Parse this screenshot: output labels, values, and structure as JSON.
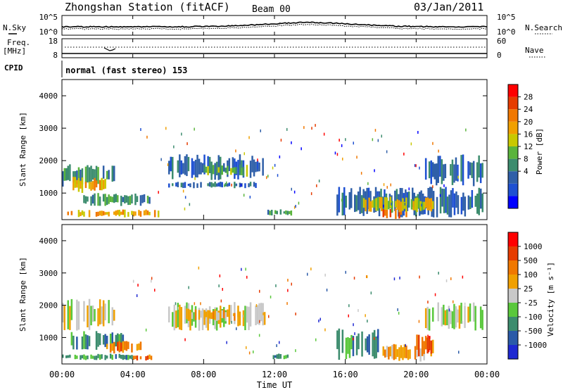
{
  "header": {
    "station": "Zhongshan Station (fitACF)",
    "beam": "Beam 00",
    "date": "03/Jan/2011"
  },
  "left_labels": {
    "nsky": "N.Sky",
    "freq": "Freq.",
    "mhz": "[MHz]",
    "cpid": "CPID"
  },
  "right_labels": {
    "nsearch": "N.Search",
    "nave": "Nave"
  },
  "cpid_text": "normal (fast stereo) 153",
  "x_axis": {
    "label": "Time UT",
    "ticks": [
      "00:00",
      "04:00",
      "08:00",
      "12:00",
      "16:00",
      "20:00",
      "00:00"
    ]
  },
  "noise_panel": {
    "left_ticks": [
      "10^5",
      "10^0"
    ],
    "right_ticks": [
      "10^5",
      "10^0"
    ]
  },
  "freq_panel": {
    "left_ticks": [
      "18",
      "8"
    ],
    "right_ticks": [
      "60",
      "0"
    ]
  },
  "power_panel": {
    "ylabel": "Slant Range [km]",
    "yticks": [
      "4000",
      "3000",
      "2000",
      "1000"
    ],
    "colorbar_label": "Power [dB]",
    "colorbar_ticks": [
      "28",
      "24",
      "20",
      "16",
      "12",
      "8",
      "4"
    ],
    "colors": [
      "#0000ff",
      "#1e50d2",
      "#2f5fa8",
      "#3c8c6e",
      "#5ab43c",
      "#c8c800",
      "#f0a000",
      "#f07800",
      "#e63c00",
      "#ff0000"
    ]
  },
  "velocity_panel": {
    "ylabel": "Slant Range [km]",
    "yticks": [
      "4000",
      "3000",
      "2000",
      "1000"
    ],
    "colorbar_label": "Velocity [m s⁻¹]",
    "colorbar_ticks": [
      "1000",
      "500",
      "100",
      "25",
      "-25",
      "-100",
      "-500",
      "-1000"
    ],
    "colors": [
      "#1e28d2",
      "#2a5aa8",
      "#3c8c6e",
      "#5ac83c",
      "#c8c8c8",
      "#f0a000",
      "#f07800",
      "#e63c00",
      "#ff0000"
    ]
  },
  "chart_data": {
    "type": "heatmap",
    "title": "Zhongshan Station (fitACF)",
    "xlabel": "Time UT",
    "ylabel": "Slant Range [km]",
    "xlim": [
      0,
      24
    ],
    "ylim": [
      180,
      4500
    ],
    "power_blobs": [
      {
        "t0": 0.0,
        "t1": 3.0,
        "r0": 1200,
        "r1": 1900,
        "level": 3
      },
      {
        "t0": 0.5,
        "t1": 2.5,
        "r0": 1000,
        "r1": 1500,
        "level": 6
      },
      {
        "t0": 0.0,
        "t1": 5.5,
        "r0": 250,
        "r1": 500,
        "level": 6
      },
      {
        "t0": 1.0,
        "t1": 5.0,
        "r0": 600,
        "r1": 1000,
        "level": 3
      },
      {
        "t0": 6.0,
        "t1": 11.5,
        "r0": 1400,
        "r1": 2200,
        "level": 2
      },
      {
        "t0": 6.0,
        "t1": 11.0,
        "r0": 1150,
        "r1": 1350,
        "level": 2
      },
      {
        "t0": 8.0,
        "t1": 10.5,
        "r0": 1500,
        "r1": 1900,
        "level": 4
      },
      {
        "t0": 11.5,
        "t1": 13.0,
        "r0": 300,
        "r1": 500,
        "level": 3
      },
      {
        "t0": 15.5,
        "t1": 23.8,
        "r0": 250,
        "r1": 1200,
        "level": 2
      },
      {
        "t0": 18.0,
        "t1": 19.5,
        "r0": 200,
        "r1": 600,
        "level": 8
      },
      {
        "t0": 17.0,
        "t1": 21.0,
        "r0": 400,
        "r1": 900,
        "level": 5
      },
      {
        "t0": 20.5,
        "t1": 23.8,
        "r0": 1200,
        "r1": 2200,
        "level": 2
      }
    ],
    "velocity_blobs": [
      {
        "t0": 0.0,
        "t1": 3.0,
        "r0": 1200,
        "r1": 2200,
        "level": 4
      },
      {
        "t0": 0.5,
        "t1": 3.5,
        "r0": 600,
        "r1": 1200,
        "level": 2
      },
      {
        "t0": 2.5,
        "t1": 4.5,
        "r0": 500,
        "r1": 900,
        "level": 6
      },
      {
        "t0": 4.0,
        "t1": 5.2,
        "r0": 250,
        "r1": 500,
        "level": 6
      },
      {
        "t0": 0.0,
        "t1": 4.0,
        "r0": 300,
        "r1": 500,
        "level": 2
      },
      {
        "t0": 6.0,
        "t1": 11.5,
        "r0": 1200,
        "r1": 2100,
        "level": 4
      },
      {
        "t0": 7.0,
        "t1": 10.0,
        "r0": 1500,
        "r1": 1900,
        "level": 5
      },
      {
        "t0": 11.5,
        "t1": 13.0,
        "r0": 300,
        "r1": 500,
        "level": 2
      },
      {
        "t0": 15.5,
        "t1": 18.0,
        "r0": 300,
        "r1": 1300,
        "level": 2
      },
      {
        "t0": 18.0,
        "t1": 21.0,
        "r0": 250,
        "r1": 800,
        "level": 5
      },
      {
        "t0": 20.0,
        "t1": 21.0,
        "r0": 400,
        "r1": 1100,
        "level": 6
      },
      {
        "t0": 20.5,
        "t1": 23.8,
        "r0": 1200,
        "r1": 2100,
        "level": 4
      }
    ]
  }
}
